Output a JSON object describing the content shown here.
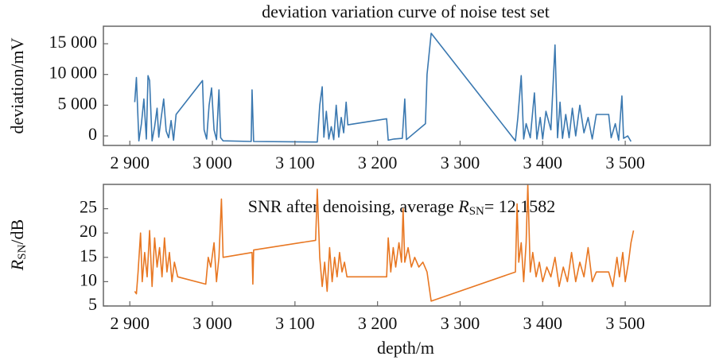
{
  "chart_data": [
    {
      "type": "line",
      "title": "deviation variation curve of noise test set",
      "ylabel": "deviation/mV",
      "color": "#3a78b0",
      "xlim": [
        2868,
        3603
      ],
      "xticks": [
        {
          "value": 2900,
          "label": "2 900"
        },
        {
          "value": 3000,
          "label": "3 000"
        },
        {
          "value": 3100,
          "label": "3 100"
        },
        {
          "value": 3200,
          "label": "3 200"
        },
        {
          "value": 3300,
          "label": "3 300"
        },
        {
          "value": 3400,
          "label": "3 400"
        },
        {
          "value": 3500,
          "label": "3 500"
        }
      ],
      "ylim": [
        -1550,
        17850
      ],
      "yticks": [
        0,
        {
          "value": 5000,
          "label": "5 000"
        },
        {
          "value": 10000,
          "label": "10 000"
        },
        {
          "value": 15000,
          "label": "15 000"
        }
      ],
      "x": [
        2906,
        2908,
        2911,
        2914,
        2917,
        2920,
        2922,
        2924,
        2927,
        2930,
        2933,
        2935,
        2938,
        2941,
        2944,
        2947,
        2950,
        2953,
        2956,
        2988,
        2990,
        2993,
        2996,
        2999,
        3002,
        3005,
        3008,
        3010,
        3013,
        3047,
        3048,
        3050,
        3127,
        3130,
        3133,
        3135,
        3138,
        3141,
        3144,
        3147,
        3150,
        3153,
        3156,
        3159,
        3162,
        3164,
        3211,
        3213,
        3220,
        3230,
        3233,
        3235,
        3258,
        3260,
        3265,
        3367,
        3370,
        3374,
        3377,
        3380,
        3385,
        3390,
        3393,
        3397,
        3400,
        3404,
        3410,
        3415,
        3418,
        3421,
        3424,
        3428,
        3432,
        3436,
        3440,
        3445,
        3450,
        3455,
        3460,
        3465,
        3480,
        3483,
        3488,
        3492,
        3496,
        3498,
        3503,
        3507
      ],
      "values": [
        5500,
        9500,
        -800,
        2000,
        6000,
        -500,
        9800,
        9000,
        -800,
        1500,
        4500,
        -200,
        3000,
        6000,
        800,
        -300,
        2500,
        -700,
        3500,
        9000,
        1000,
        -500,
        5000,
        7800,
        1000,
        -600,
        7500,
        -300,
        -800,
        -900,
        7500,
        -900,
        -1000,
        5000,
        8000,
        -200,
        4000,
        -500,
        1500,
        -600,
        5000,
        -200,
        3000,
        500,
        5500,
        1800,
        2800,
        -700,
        -500,
        -400,
        6000,
        -600,
        2000,
        10000,
        16700,
        -800,
        3000,
        9800,
        -500,
        2000,
        -300,
        7000,
        -500,
        3000,
        -500,
        4000,
        1000,
        14800,
        -300,
        5500,
        -400,
        3500,
        -300,
        4500,
        0,
        5000,
        500,
        3000,
        -500,
        3500,
        3500,
        -300,
        2000,
        -700,
        6500,
        -400,
        0,
        -900
      ]
    },
    {
      "type": "line",
      "annotation": [
        "SNR after denoising, average ",
        "R",
        "SN",
        "= 12.1582"
      ],
      "ylabel": [
        "R",
        "SN",
        "/dB"
      ],
      "xlabel": "depth/m",
      "color": "#e87722",
      "xlim": [
        2868,
        3603
      ],
      "xticks": [
        {
          "value": 2900,
          "label": "2 900"
        },
        {
          "value": 3000,
          "label": "3 000"
        },
        {
          "value": 3100,
          "label": "3 100"
        },
        {
          "value": 3200,
          "label": "3 200"
        },
        {
          "value": 3300,
          "label": "3 300"
        },
        {
          "value": 3400,
          "label": "3 400"
        },
        {
          "value": 3500,
          "label": "3 500"
        }
      ],
      "ylim": [
        5,
        30
      ],
      "yticks": [
        5,
        10,
        15,
        20,
        25
      ],
      "x": [
        2906,
        2908,
        2910,
        2913,
        2915,
        2918,
        2921,
        2924,
        2927,
        2930,
        2933,
        2936,
        2939,
        2942,
        2945,
        2948,
        2951,
        2954,
        2958,
        2992,
        2995,
        2998,
        3002,
        3005,
        3008,
        3011,
        3013,
        3048,
        3049,
        3050,
        3125,
        3127,
        3130,
        3133,
        3136,
        3139,
        3142,
        3145,
        3148,
        3151,
        3154,
        3157,
        3160,
        3163,
        3211,
        3213,
        3216,
        3219,
        3222,
        3226,
        3229,
        3231,
        3233,
        3237,
        3241,
        3245,
        3250,
        3255,
        3260,
        3265,
        3367,
        3369,
        3371,
        3374,
        3377,
        3380,
        3382,
        3385,
        3388,
        3392,
        3396,
        3400,
        3405,
        3410,
        3415,
        3420,
        3425,
        3430,
        3435,
        3440,
        3445,
        3450,
        3455,
        3460,
        3465,
        3480,
        3485,
        3490,
        3493,
        3497,
        3500,
        3504,
        3507,
        3510
      ],
      "values": [
        8,
        7.5,
        12,
        20,
        10,
        16,
        11,
        20.5,
        9,
        19,
        13,
        17,
        11,
        19,
        12,
        16,
        10,
        14,
        11,
        9.5,
        15,
        13,
        18,
        10,
        15,
        27,
        15,
        16,
        9.5,
        16.5,
        18.5,
        29,
        15,
        9,
        14,
        8,
        17,
        10,
        15,
        11,
        16,
        12,
        14,
        11,
        11,
        19,
        12,
        17,
        13,
        18,
        14,
        25,
        14,
        17,
        13,
        15,
        13,
        14,
        12,
        6,
        12,
        26,
        14,
        18,
        10,
        18,
        30,
        12,
        16,
        11,
        14,
        10,
        13,
        11,
        15,
        9,
        13,
        10,
        16,
        10,
        14,
        11,
        17,
        10,
        12,
        12,
        9,
        15,
        11,
        16,
        10,
        14,
        18,
        20.5
      ]
    }
  ]
}
